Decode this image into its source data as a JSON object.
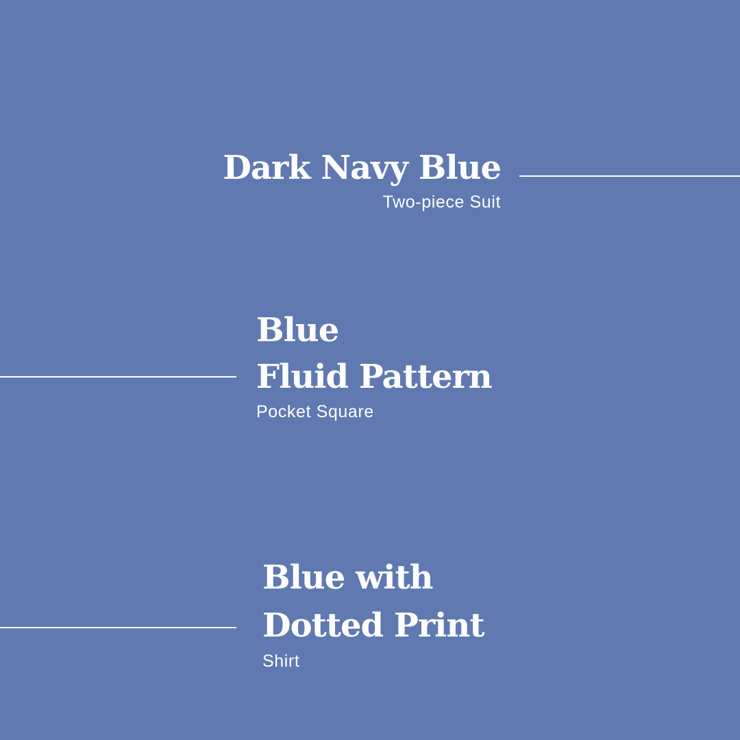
{
  "colors": {
    "background": "#6079b1",
    "text": "#ffffff",
    "line": "#ffffff"
  },
  "items": [
    {
      "title_lines": [
        "Dark Navy Blue"
      ],
      "subtitle": "Two-piece Suit"
    },
    {
      "title_lines": [
        "Blue",
        "Fluid Pattern"
      ],
      "subtitle": "Pocket Square"
    },
    {
      "title_lines": [
        "Blue with",
        "Dotted Print"
      ],
      "subtitle": "Shirt"
    }
  ]
}
